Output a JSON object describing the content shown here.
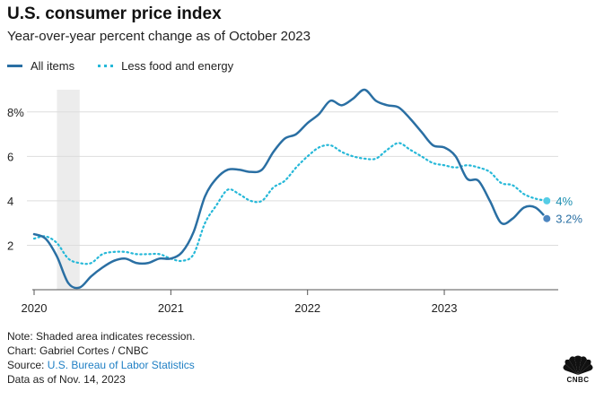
{
  "header": {
    "title": "U.S. consumer price index",
    "subtitle": "Year-over-year percent change as of October 2023"
  },
  "footer": {
    "note": "Note: Shaded area indicates recession.",
    "chart_credit": "Chart: Gabriel Cortes / CNBC",
    "source_prefix": "Source: ",
    "source_link": "U.S. Bureau of Labor Statistics",
    "data_date": "Data as of Nov. 14, 2023"
  },
  "logo": {
    "text": "CNBC",
    "icon": "cnbc-peacock-icon"
  },
  "colors": {
    "all_items": "#2a6fa3",
    "less_food_energy": "#25b8d8",
    "recession": "#ececec",
    "grid": "#dddddd",
    "axis": "#555555"
  },
  "chart_data": {
    "type": "line",
    "ylim": [
      0,
      9
    ],
    "yticks": [
      {
        "value": 2,
        "label": "2"
      },
      {
        "value": 4,
        "label": "4"
      },
      {
        "value": 6,
        "label": "6"
      },
      {
        "value": 8,
        "label": "8%"
      }
    ],
    "xticks": [
      {
        "value": "2020-01",
        "label": "2020"
      },
      {
        "value": "2021-01",
        "label": "2021"
      },
      {
        "value": "2022-01",
        "label": "2022"
      },
      {
        "value": "2023-01",
        "label": "2023"
      }
    ],
    "xrange": [
      "2020-01",
      "2023-11"
    ],
    "recession": {
      "start": "2020-03",
      "end": "2020-05"
    },
    "x": [
      "2020-01",
      "2020-02",
      "2020-03",
      "2020-04",
      "2020-05",
      "2020-06",
      "2020-07",
      "2020-08",
      "2020-09",
      "2020-10",
      "2020-11",
      "2020-12",
      "2021-01",
      "2021-02",
      "2021-03",
      "2021-04",
      "2021-05",
      "2021-06",
      "2021-07",
      "2021-08",
      "2021-09",
      "2021-10",
      "2021-11",
      "2021-12",
      "2022-01",
      "2022-02",
      "2022-03",
      "2022-04",
      "2022-05",
      "2022-06",
      "2022-07",
      "2022-08",
      "2022-09",
      "2022-10",
      "2022-11",
      "2022-12",
      "2023-01",
      "2023-02",
      "2023-03",
      "2023-04",
      "2023-05",
      "2023-06",
      "2023-07",
      "2023-08",
      "2023-09",
      "2023-10"
    ],
    "series": [
      {
        "name": "All items",
        "style": "solid",
        "values": [
          2.5,
          2.3,
          1.5,
          0.3,
          0.1,
          0.6,
          1.0,
          1.3,
          1.4,
          1.2,
          1.2,
          1.4,
          1.4,
          1.7,
          2.6,
          4.2,
          5.0,
          5.4,
          5.4,
          5.3,
          5.4,
          6.2,
          6.8,
          7.0,
          7.5,
          7.9,
          8.5,
          8.3,
          8.6,
          9.0,
          8.5,
          8.3,
          8.2,
          7.7,
          7.1,
          6.5,
          6.4,
          6.0,
          5.0,
          4.9,
          4.0,
          3.0,
          3.2,
          3.7,
          3.7,
          3.2
        ],
        "end_label": "3.2%"
      },
      {
        "name": "Less food and energy",
        "style": "dotted",
        "values": [
          2.3,
          2.4,
          2.1,
          1.4,
          1.2,
          1.2,
          1.6,
          1.7,
          1.7,
          1.6,
          1.6,
          1.6,
          1.4,
          1.3,
          1.6,
          3.0,
          3.8,
          4.5,
          4.3,
          4.0,
          4.0,
          4.6,
          4.9,
          5.5,
          6.0,
          6.4,
          6.5,
          6.2,
          6.0,
          5.9,
          5.9,
          6.3,
          6.6,
          6.3,
          6.0,
          5.7,
          5.6,
          5.5,
          5.6,
          5.5,
          5.3,
          4.8,
          4.7,
          4.3,
          4.1,
          4.0
        ],
        "end_label": "4%"
      }
    ]
  }
}
